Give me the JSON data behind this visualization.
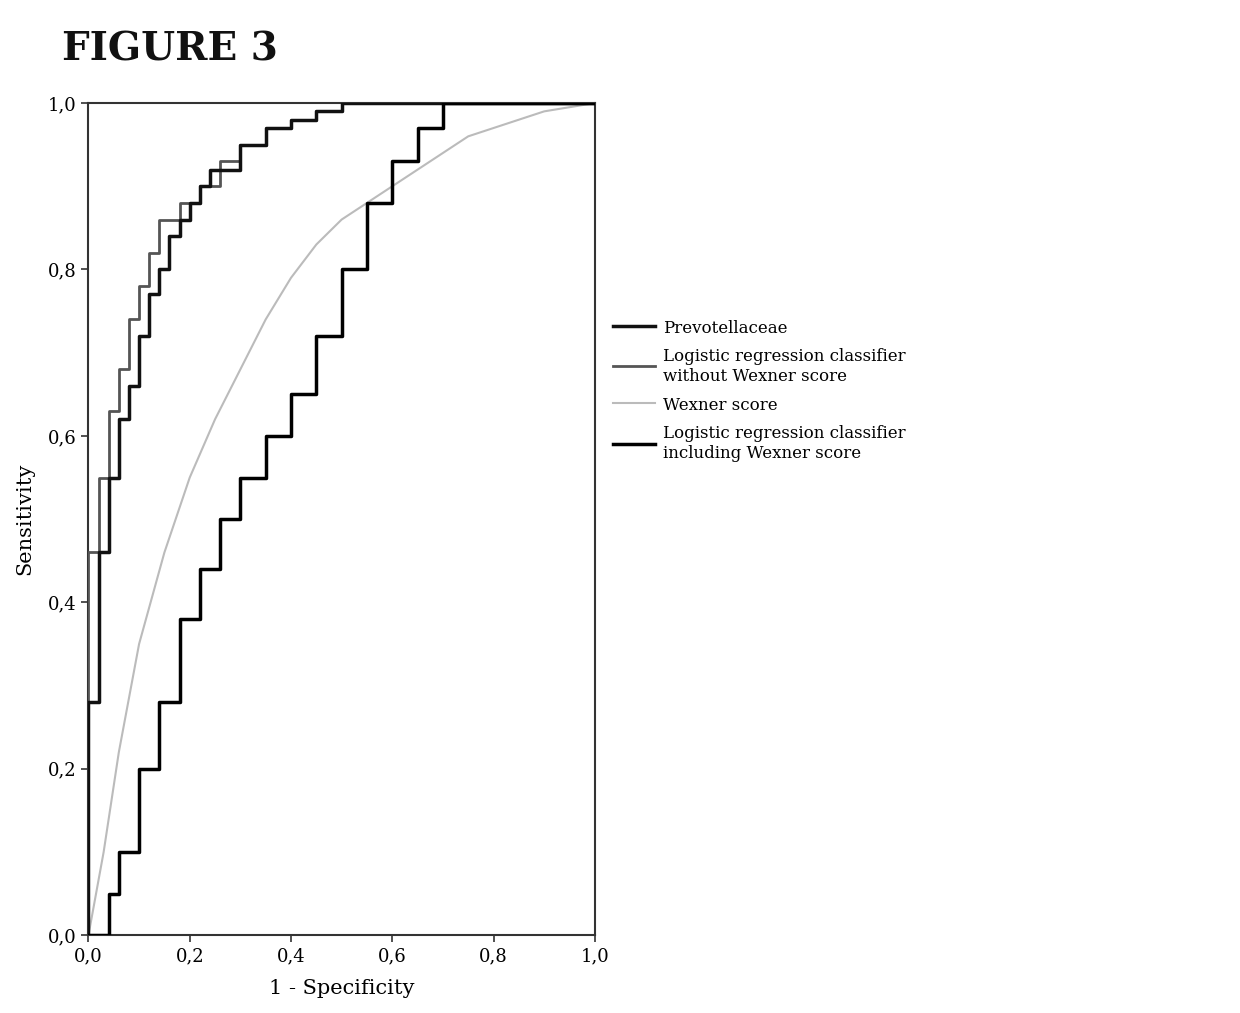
{
  "title": "FIGURE 3",
  "xlabel": "1 - Specificity",
  "ylabel": "Sensitivity",
  "xlim": [
    0.0,
    1.0
  ],
  "ylim": [
    0.0,
    1.0
  ],
  "xticks": [
    0.0,
    0.2,
    0.4,
    0.6,
    0.8,
    1.0
  ],
  "yticks": [
    0.0,
    0.2,
    0.4,
    0.6,
    0.8,
    1.0
  ],
  "xtick_labels": [
    "0,0",
    "0,2",
    "0,4",
    "0,6",
    "0,8",
    "1,0"
  ],
  "ytick_labels": [
    "0,0",
    "0,2",
    "0,4",
    "0,6",
    "0,8",
    "1,0"
  ],
  "background_color": "#ffffff",
  "legend_labels": [
    "Prevotellaceae",
    "Logistic regression classifier\nwithout Wexner score",
    "Wexner score",
    "Logistic regression classifier\nincluding Wexner score"
  ],
  "prevotellaceae_x": [
    0.0,
    0.0,
    0.02,
    0.02,
    0.04,
    0.04,
    0.06,
    0.06,
    0.08,
    0.08,
    0.1,
    0.1,
    0.12,
    0.12,
    0.14,
    0.14,
    0.16,
    0.16,
    0.18,
    0.18,
    0.2,
    0.2,
    0.22,
    0.22,
    0.24,
    0.24,
    0.3,
    0.3,
    0.35,
    0.35,
    0.4,
    0.4,
    0.45,
    0.45,
    0.5,
    0.5,
    0.55,
    0.55,
    0.6,
    0.6,
    0.65,
    0.65,
    0.7,
    0.7,
    1.0
  ],
  "prevotellaceae_y": [
    0.0,
    0.28,
    0.28,
    0.46,
    0.46,
    0.55,
    0.55,
    0.62,
    0.62,
    0.66,
    0.66,
    0.72,
    0.72,
    0.77,
    0.77,
    0.8,
    0.8,
    0.84,
    0.84,
    0.86,
    0.86,
    0.88,
    0.88,
    0.9,
    0.9,
    0.92,
    0.92,
    0.95,
    0.95,
    0.97,
    0.97,
    0.98,
    0.98,
    0.99,
    0.99,
    1.0,
    1.0,
    1.0,
    1.0,
    1.0,
    1.0,
    1.0,
    1.0,
    1.0,
    1.0
  ],
  "logistic_no_wexner_x": [
    0.0,
    0.0,
    0.02,
    0.02,
    0.04,
    0.04,
    0.06,
    0.06,
    0.08,
    0.08,
    0.1,
    0.1,
    0.12,
    0.12,
    0.14,
    0.14,
    0.18,
    0.18,
    0.22,
    0.22,
    0.26,
    0.26,
    0.3,
    0.3,
    0.35,
    0.35,
    0.4,
    0.4,
    0.45,
    0.45,
    0.5,
    0.5,
    0.55,
    0.55,
    0.6,
    0.6,
    0.65,
    0.65,
    0.7,
    0.7,
    0.75,
    0.75,
    1.0
  ],
  "logistic_no_wexner_y": [
    0.0,
    0.46,
    0.46,
    0.55,
    0.55,
    0.63,
    0.63,
    0.68,
    0.68,
    0.74,
    0.74,
    0.78,
    0.78,
    0.82,
    0.82,
    0.86,
    0.86,
    0.88,
    0.88,
    0.9,
    0.9,
    0.93,
    0.93,
    0.95,
    0.95,
    0.97,
    0.97,
    0.98,
    0.98,
    0.99,
    0.99,
    1.0,
    1.0,
    1.0,
    1.0,
    1.0,
    1.0,
    1.0,
    1.0,
    1.0,
    1.0,
    1.0,
    1.0
  ],
  "wexner_x": [
    0.0,
    0.03,
    0.06,
    0.1,
    0.15,
    0.2,
    0.25,
    0.3,
    0.35,
    0.4,
    0.45,
    0.5,
    0.55,
    0.6,
    0.65,
    0.7,
    0.75,
    0.8,
    0.85,
    0.9,
    0.95,
    1.0
  ],
  "wexner_y": [
    0.0,
    0.1,
    0.22,
    0.35,
    0.46,
    0.55,
    0.62,
    0.68,
    0.74,
    0.79,
    0.83,
    0.86,
    0.88,
    0.9,
    0.92,
    0.94,
    0.96,
    0.97,
    0.98,
    0.99,
    0.995,
    1.0
  ],
  "logistic_with_wexner_x": [
    0.0,
    0.0,
    0.02,
    0.02,
    0.04,
    0.04,
    0.06,
    0.06,
    0.1,
    0.1,
    0.14,
    0.14,
    0.18,
    0.18,
    0.22,
    0.22,
    0.26,
    0.26,
    0.3,
    0.3,
    0.35,
    0.35,
    0.4,
    0.4,
    0.45,
    0.45,
    0.5,
    0.5,
    0.55,
    0.55,
    0.6,
    0.6,
    0.65,
    0.65,
    0.7,
    0.7,
    0.75,
    0.75,
    1.0
  ],
  "logistic_with_wexner_y": [
    0.0,
    0.0,
    0.0,
    0.0,
    0.0,
    0.05,
    0.05,
    0.1,
    0.1,
    0.2,
    0.2,
    0.28,
    0.28,
    0.38,
    0.38,
    0.44,
    0.44,
    0.5,
    0.5,
    0.55,
    0.55,
    0.6,
    0.6,
    0.65,
    0.65,
    0.72,
    0.72,
    0.8,
    0.8,
    0.88,
    0.88,
    0.93,
    0.93,
    0.97,
    0.97,
    1.0,
    1.0,
    1.0,
    1.0
  ]
}
